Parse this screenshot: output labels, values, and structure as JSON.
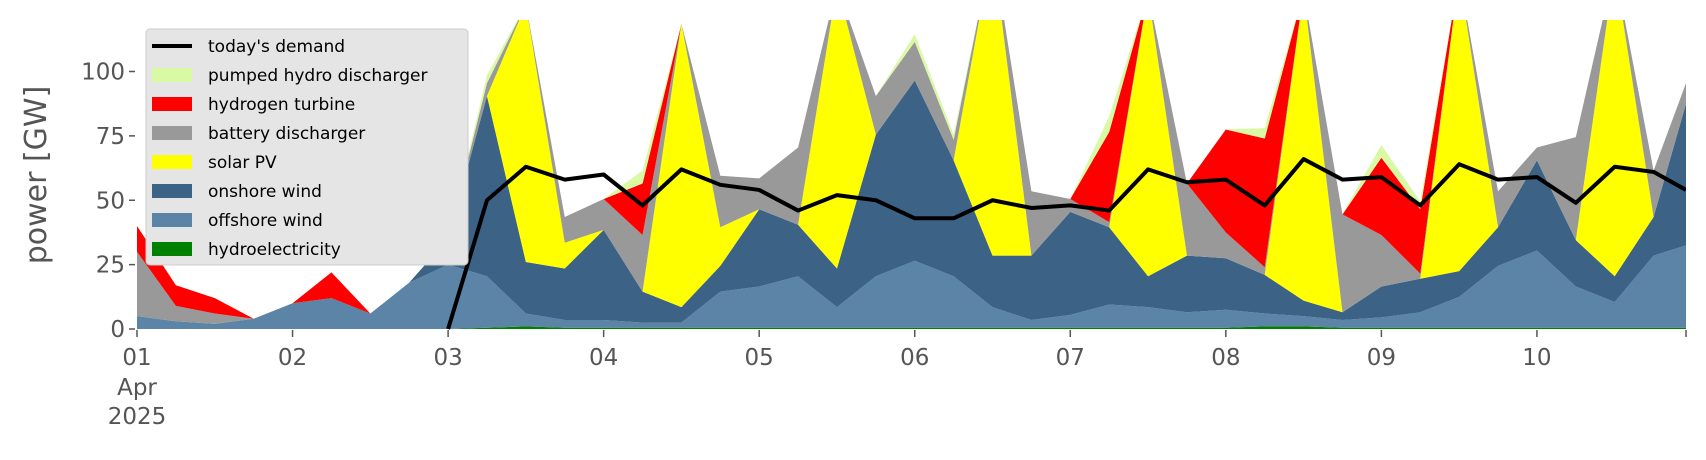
{
  "chart_data": {
    "type": "area",
    "ylabel": "power [GW]",
    "ylim": [
      0,
      120
    ],
    "xlim": [
      "2025-04-01T00:00",
      "2025-04-10T23:00"
    ],
    "yticks": [
      0,
      25,
      50,
      75,
      100
    ],
    "xticks": [
      {
        "date": "2025-04-01",
        "label": "01",
        "sub": [
          "Apr",
          "2025"
        ]
      },
      {
        "date": "2025-04-02",
        "label": "02"
      },
      {
        "date": "2025-04-03",
        "label": "03"
      },
      {
        "date": "2025-04-04",
        "label": "04"
      },
      {
        "date": "2025-04-05",
        "label": "05"
      },
      {
        "date": "2025-04-06",
        "label": "06"
      },
      {
        "date": "2025-04-07",
        "label": "07"
      },
      {
        "date": "2025-04-08",
        "label": "08"
      },
      {
        "date": "2025-04-09",
        "label": "09"
      },
      {
        "date": "2025-04-10",
        "label": "10"
      }
    ],
    "stack_order": [
      "hydroelectricity",
      "offshore wind",
      "onshore wind",
      "solar PV",
      "battery discharger",
      "hydrogen turbine",
      "pumped hydro discharger"
    ],
    "x": [
      "2025-04-01T00:00",
      "2025-04-01T06:00",
      "2025-04-01T12:00",
      "2025-04-01T18:00",
      "2025-04-02T00:00",
      "2025-04-02T06:00",
      "2025-04-02T12:00",
      "2025-04-02T18:00",
      "2025-04-03T00:00",
      "2025-04-03T06:00",
      "2025-04-03T12:00",
      "2025-04-03T18:00",
      "2025-04-04T00:00",
      "2025-04-04T06:00",
      "2025-04-04T12:00",
      "2025-04-04T18:00",
      "2025-04-05T00:00",
      "2025-04-05T06:00",
      "2025-04-05T12:00",
      "2025-04-05T18:00",
      "2025-04-06T00:00",
      "2025-04-06T06:00",
      "2025-04-06T12:00",
      "2025-04-06T18:00",
      "2025-04-07T00:00",
      "2025-04-07T06:00",
      "2025-04-07T12:00",
      "2025-04-07T18:00",
      "2025-04-08T00:00",
      "2025-04-08T06:00",
      "2025-04-08T12:00",
      "2025-04-08T18:00",
      "2025-04-09T00:00",
      "2025-04-09T06:00",
      "2025-04-09T12:00",
      "2025-04-09T18:00",
      "2025-04-10T00:00",
      "2025-04-10T06:00",
      "2025-04-10T12:00",
      "2025-04-10T18:00",
      "2025-04-10T23:00"
    ],
    "series": [
      {
        "name": "hydroelectricity",
        "color": "#008000",
        "values": [
          0,
          0,
          0,
          0,
          0,
          0,
          0,
          0,
          0,
          0.5,
          1,
          0.5,
          0.5,
          0.5,
          0.5,
          0.5,
          0.5,
          0.5,
          0.5,
          0.5,
          0.5,
          0.5,
          0.5,
          0.5,
          0.5,
          0.5,
          0.5,
          0.5,
          0.5,
          1,
          1,
          0.5,
          0.5,
          0.5,
          0.5,
          0.5,
          0.5,
          0.5,
          0.5,
          0.5,
          0.5
        ]
      },
      {
        "name": "offshore wind",
        "color": "#5b84a6",
        "values": [
          5,
          3,
          2,
          4,
          10,
          12,
          6,
          18,
          25,
          20,
          5,
          3,
          3,
          2,
          2,
          14,
          16,
          20,
          8,
          20,
          26,
          20,
          8,
          3,
          5,
          9,
          8,
          6,
          7,
          5,
          4,
          3,
          4,
          6,
          12,
          24,
          30,
          16,
          10,
          28,
          32
        ]
      },
      {
        "name": "onshore wind",
        "color": "#3c6286",
        "values": [
          0,
          0,
          0,
          0,
          0,
          0,
          0,
          0,
          10,
          70,
          20,
          20,
          35,
          12,
          6,
          10,
          30,
          20,
          15,
          55,
          70,
          45,
          20,
          25,
          40,
          30,
          12,
          22,
          20,
          15,
          6,
          3,
          12,
          13,
          10,
          15,
          35,
          18,
          10,
          15,
          55
        ]
      },
      {
        "name": "solar PV",
        "color": "#ffff00",
        "values": [
          0,
          0,
          0,
          0,
          0,
          0,
          0,
          0,
          0,
          0,
          100,
          10,
          0,
          0,
          110,
          15,
          0,
          0,
          110,
          0,
          0,
          0,
          120,
          0,
          0,
          0,
          110,
          0,
          0,
          0,
          120,
          0,
          0,
          0,
          115,
          0,
          0,
          0,
          120,
          0,
          0
        ]
      },
      {
        "name": "battery discharger",
        "color": "#999999",
        "values": [
          25,
          6,
          4,
          0,
          0,
          0,
          0,
          0,
          0,
          5,
          0,
          10,
          12,
          22,
          0,
          20,
          12,
          30,
          0,
          15,
          15,
          8,
          0,
          25,
          5,
          2,
          0,
          28,
          10,
          3,
          0,
          38,
          20,
          2,
          0,
          14,
          5,
          40,
          0,
          18,
          8
        ]
      },
      {
        "name": "hydrogen turbine",
        "color": "#ff0000",
        "values": [
          10,
          8,
          6,
          0,
          0,
          10,
          0,
          0,
          0,
          0,
          0,
          0,
          0,
          20,
          0,
          0,
          0,
          0,
          0,
          0,
          0,
          0,
          0,
          0,
          0,
          35,
          0,
          0,
          40,
          50,
          0,
          0,
          30,
          25,
          0,
          0,
          0,
          0,
          0,
          0,
          0
        ]
      },
      {
        "name": "pumped hydro discharger",
        "color": "#d9f9a5",
        "values": [
          0,
          0,
          0,
          0,
          0,
          0,
          0,
          0,
          0,
          3,
          0,
          0,
          0,
          5,
          0,
          0,
          0,
          0,
          0,
          0,
          3,
          2,
          0,
          0,
          0,
          6,
          0,
          0,
          0,
          4,
          0,
          0,
          5,
          3,
          0,
          0,
          0,
          0,
          0,
          0,
          0
        ]
      }
    ],
    "demand": {
      "name": "today's demand",
      "color": "#000000",
      "values": [
        null,
        null,
        null,
        null,
        null,
        null,
        null,
        null,
        0,
        50,
        63,
        58,
        60,
        48,
        62,
        56,
        54,
        46,
        52,
        50,
        43,
        43,
        50,
        47,
        48,
        46,
        62,
        57,
        58,
        48,
        66,
        58,
        59,
        48,
        64,
        58,
        59,
        49,
        63,
        61,
        54
      ]
    },
    "legend": {
      "location": "top-left",
      "entries": [
        {
          "label": "today's demand",
          "kind": "line",
          "color": "#000000"
        },
        {
          "label": "pumped hydro discharger",
          "kind": "patch",
          "color": "#d9f9a5"
        },
        {
          "label": "hydrogen turbine",
          "kind": "patch",
          "color": "#ff0000"
        },
        {
          "label": "battery discharger",
          "kind": "patch",
          "color": "#999999"
        },
        {
          "label": "solar PV",
          "kind": "patch",
          "color": "#ffff00"
        },
        {
          "label": "onshore wind",
          "kind": "patch",
          "color": "#3c6286"
        },
        {
          "label": "offshore wind",
          "kind": "patch",
          "color": "#5b84a6"
        },
        {
          "label": "hydroelectricity",
          "kind": "patch",
          "color": "#008000"
        }
      ]
    },
    "grid": false
  }
}
